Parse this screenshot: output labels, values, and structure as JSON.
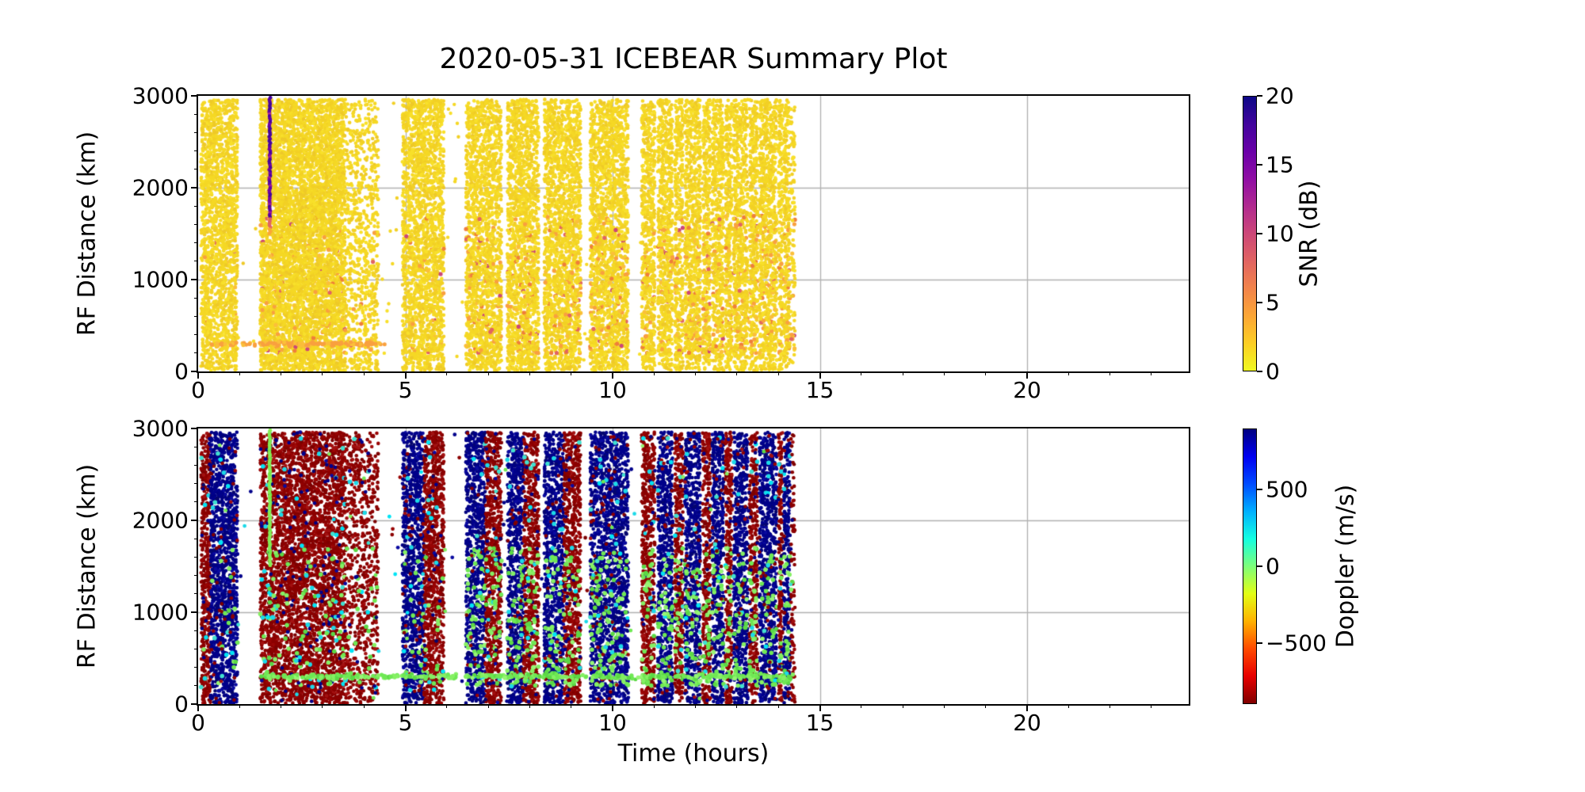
{
  "title": "2020-05-31 ICEBEAR Summary Plot",
  "axes": {
    "x": {
      "label": "Time (hours)",
      "lim": [
        0,
        23.9
      ],
      "ticks": [
        0,
        5,
        10,
        15,
        20
      ],
      "minor_step": 1,
      "grid_ticks": [
        5,
        10,
        15,
        20
      ]
    },
    "y": {
      "label": "RF Distance (km)",
      "lim": [
        0,
        3000
      ],
      "ticks": [
        0,
        1000,
        2000,
        3000
      ],
      "minor_step": 200,
      "grid_ticks": [
        1000,
        2000
      ]
    }
  },
  "panels": [
    {
      "name": "snr",
      "ylabel": "RF Distance (km)",
      "colorbar": {
        "label": "SNR (dB)",
        "vmin": 0,
        "vmax": 20,
        "ticks": [
          0,
          5,
          10,
          15,
          20
        ],
        "colormap": "plasma_r",
        "stops_top_to_bottom": [
          "#0d0887",
          "#41049d",
          "#6a00a8",
          "#8f0da4",
          "#b12a90",
          "#cc4778",
          "#e16462",
          "#f2844b",
          "#fca636",
          "#fcce25",
          "#f0f921"
        ]
      }
    },
    {
      "name": "doppler",
      "ylabel": "RF Distance (km)",
      "xlabel": "Time (hours)",
      "colorbar": {
        "label": "Doppler (m/s)",
        "vmin": -900,
        "vmax": 900,
        "ticks": [
          -500,
          0,
          500
        ],
        "colormap": "jet_r",
        "stops_top_to_bottom": [
          "#000080",
          "#0000f1",
          "#004cff",
          "#00b0ff",
          "#14ffe1",
          "#7dff7a",
          "#e2ff15",
          "#ffb200",
          "#ff4b00",
          "#e80000",
          "#800000"
        ]
      }
    }
  ],
  "chart_data": {
    "type": "scatter",
    "title": "2020-05-31 ICEBEAR Summary Plot",
    "xlabel": "Time (hours)",
    "ylabel": "RF Distance (km)",
    "xlim": [
      0,
      23.9
    ],
    "ylim": [
      0,
      3000
    ],
    "grid": true,
    "grid_color": "#b0b0b0",
    "data_extent_hours": [
      0.05,
      14.42
    ],
    "dot_radius_px": 2.3,
    "densities_per_hour": {
      "heavy": 2700,
      "dense": 2000,
      "medium": 900,
      "sparse": 260
    },
    "bands": [
      {
        "t0": 0.07,
        "t1": 0.3,
        "doppler_color": "red",
        "top_density": "dense",
        "bottom_density": "dense"
      },
      {
        "t0": 0.3,
        "t1": 0.95,
        "doppler_color": "blue",
        "top_density": "dense",
        "bottom_density": "dense"
      },
      {
        "t0": 1.5,
        "t1": 3.55,
        "doppler_color": "red",
        "top_density": "heavy",
        "bottom_density": "dense"
      },
      {
        "t0": 3.55,
        "t1": 4.35,
        "doppler_color": "red",
        "top_density": "medium",
        "bottom_density": "medium"
      },
      {
        "t0": 4.93,
        "t1": 5.45,
        "doppler_color": "blue",
        "top_density": "dense",
        "bottom_density": "dense"
      },
      {
        "t0": 5.45,
        "t1": 5.93,
        "doppler_color": "red",
        "top_density": "dense",
        "bottom_density": "dense"
      },
      {
        "t0": 6.46,
        "t1": 6.93,
        "doppler_color": "blue",
        "top_density": "dense",
        "bottom_density": "dense"
      },
      {
        "t0": 6.93,
        "t1": 7.32,
        "doppler_color": "red",
        "top_density": "dense",
        "bottom_density": "dense"
      },
      {
        "t0": 7.46,
        "t1": 7.85,
        "doppler_color": "blue",
        "top_density": "dense",
        "bottom_density": "dense"
      },
      {
        "t0": 7.85,
        "t1": 8.22,
        "doppler_color": "red",
        "top_density": "dense",
        "bottom_density": "dense"
      },
      {
        "t0": 8.35,
        "t1": 8.82,
        "doppler_color": "blue",
        "top_density": "dense",
        "bottom_density": "dense"
      },
      {
        "t0": 8.82,
        "t1": 9.23,
        "doppler_color": "red",
        "top_density": "dense",
        "bottom_density": "dense"
      },
      {
        "t0": 9.46,
        "t1": 10.38,
        "doppler_color": "blue",
        "top_density": "dense",
        "bottom_density": "dense"
      },
      {
        "t0": 10.7,
        "t1": 11.02,
        "doppler_color": "red",
        "top_density": "dense",
        "bottom_density": "dense"
      },
      {
        "t0": 11.09,
        "t1": 11.45,
        "doppler_color": "blue",
        "top_density": "dense",
        "bottom_density": "dense"
      },
      {
        "t0": 11.5,
        "t1": 11.7,
        "doppler_color": "red",
        "top_density": "dense",
        "bottom_density": "dense"
      },
      {
        "t0": 11.74,
        "t1": 12.12,
        "doppler_color": "blue",
        "top_density": "dense",
        "bottom_density": "dense"
      },
      {
        "t0": 12.17,
        "t1": 12.36,
        "doppler_color": "red",
        "top_density": "dense",
        "bottom_density": "dense"
      },
      {
        "t0": 12.4,
        "t1": 12.68,
        "doppler_color": "blue",
        "top_density": "dense",
        "bottom_density": "dense"
      },
      {
        "t0": 12.72,
        "t1": 12.88,
        "doppler_color": "red",
        "top_density": "dense",
        "bottom_density": "dense"
      },
      {
        "t0": 12.92,
        "t1": 13.26,
        "doppler_color": "blue",
        "top_density": "dense",
        "bottom_density": "dense"
      },
      {
        "t0": 13.3,
        "t1": 13.5,
        "doppler_color": "red",
        "top_density": "dense",
        "bottom_density": "dense"
      },
      {
        "t0": 13.54,
        "t1": 13.96,
        "doppler_color": "blue",
        "top_density": "dense",
        "bottom_density": "dense"
      },
      {
        "t0": 14.0,
        "t1": 14.1,
        "doppler_color": "red",
        "top_density": "dense",
        "bottom_density": "dense"
      },
      {
        "t0": 14.13,
        "t1": 14.28,
        "doppler_color": "blue",
        "top_density": "dense",
        "bottom_density": "dense"
      },
      {
        "t0": 14.3,
        "t1": 14.4,
        "doppler_color": "red",
        "top_density": "medium",
        "bottom_density": "medium"
      }
    ],
    "features": [
      {
        "type": "vertical-streak",
        "panel": "snr",
        "t": 1.73,
        "km_range": [
          1500,
          2980
        ],
        "description": "high-SNR meteor/satellite streak, plasma purples with orange tip at bottom"
      },
      {
        "type": "vertical-streak",
        "panel": "doppler",
        "t": 1.73,
        "km_range": [
          1500,
          2980
        ],
        "color": "#85ee55"
      },
      {
        "type": "horizontal-row",
        "panel": "doppler",
        "km": 300,
        "t_range": [
          1.5,
          14.35
        ],
        "color": "green",
        "n": 330
      },
      {
        "type": "horizontal-row",
        "panel": "snr",
        "km": 300,
        "t_range": [
          0.3,
          4.5
        ],
        "color": "orange",
        "n": 140
      },
      {
        "type": "stray-points",
        "t_range": [
          0.05,
          14.4
        ],
        "n_per_panel": 160
      }
    ],
    "palettes": {
      "snr_yellow": [
        [
          "#f5d825",
          50
        ],
        [
          "#f2d025",
          25
        ],
        [
          "#f8e02a",
          15
        ],
        [
          "#eec928",
          10
        ]
      ],
      "snr_orange": [
        [
          "#f9a03f",
          45
        ],
        [
          "#fbbf3a",
          25
        ],
        [
          "#ef7e3a",
          15
        ],
        [
          "#e16462",
          10
        ],
        [
          "#cc4778",
          5
        ]
      ],
      "doppler_blue": [
        [
          "#00008b",
          55
        ],
        [
          "#000080",
          25
        ],
        [
          "#0a0aa0",
          12
        ],
        [
          "#06066f",
          8
        ]
      ],
      "doppler_red": [
        [
          "#8b0000",
          55
        ],
        [
          "#990404",
          20
        ],
        [
          "#7c0000",
          15
        ],
        [
          "#a31111",
          10
        ]
      ],
      "doppler_green": [
        [
          "#6fe854",
          40
        ],
        [
          "#85f063",
          30
        ],
        [
          "#5bd945",
          20
        ],
        [
          "#97f574",
          10
        ]
      ],
      "doppler_cyan": [
        [
          "#1cd9e8",
          50
        ],
        [
          "#00e4f5",
          30
        ],
        [
          "#40e0d0",
          20
        ]
      ],
      "streak_purple": [
        [
          "#46039f",
          45
        ],
        [
          "#5c01a6",
          25
        ],
        [
          "#7201a8",
          15
        ],
        [
          "#9c179e",
          10
        ],
        [
          "#b12a90",
          5
        ]
      ]
    }
  }
}
